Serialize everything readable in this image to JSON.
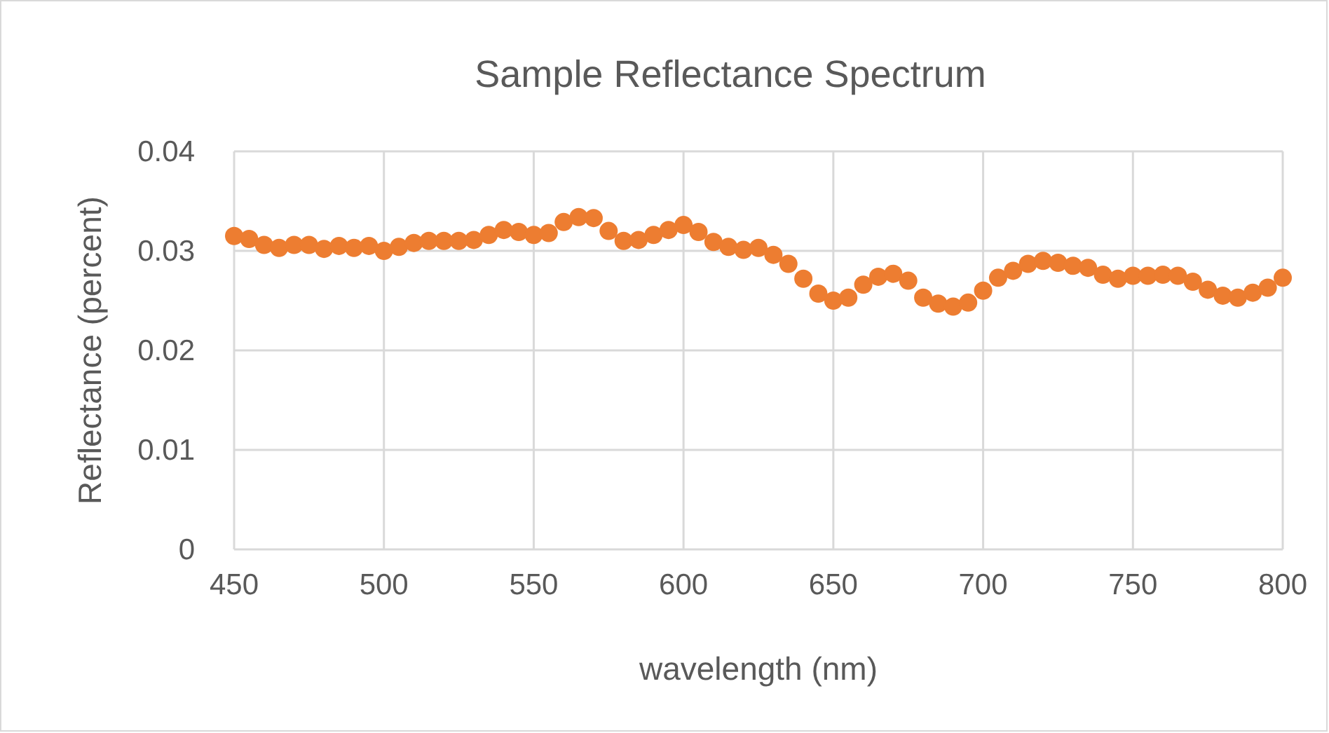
{
  "chart_data": {
    "type": "scatter",
    "title": "Sample Reflectance Spectrum",
    "xlabel": "wavelength (nm)",
    "ylabel": "Reflectance (percent)",
    "x": [
      450,
      455,
      460,
      465,
      470,
      475,
      480,
      485,
      490,
      495,
      500,
      505,
      510,
      515,
      520,
      525,
      530,
      535,
      540,
      545,
      550,
      555,
      560,
      565,
      570,
      575,
      580,
      585,
      590,
      595,
      600,
      605,
      610,
      615,
      620,
      625,
      630,
      635,
      640,
      645,
      650,
      655,
      660,
      665,
      670,
      675,
      680,
      685,
      690,
      695,
      700,
      705,
      710,
      715,
      720,
      725,
      730,
      735,
      740,
      745,
      750,
      755,
      760,
      765,
      770,
      775,
      780,
      785,
      790,
      795,
      800
    ],
    "series": [
      {
        "color": "#ed7d31",
        "values": [
          0.0315,
          0.0312,
          0.0306,
          0.0303,
          0.0306,
          0.0306,
          0.0302,
          0.0305,
          0.0303,
          0.0305,
          0.03,
          0.0304,
          0.0308,
          0.031,
          0.031,
          0.031,
          0.0311,
          0.0316,
          0.0321,
          0.0319,
          0.0316,
          0.0318,
          0.0329,
          0.0334,
          0.0333,
          0.032,
          0.031,
          0.0311,
          0.0316,
          0.0321,
          0.0326,
          0.0319,
          0.0309,
          0.0304,
          0.0301,
          0.0303,
          0.0296,
          0.0287,
          0.0272,
          0.0257,
          0.025,
          0.0253,
          0.0266,
          0.0274,
          0.0277,
          0.027,
          0.0253,
          0.0247,
          0.0244,
          0.0248,
          0.026,
          0.0273,
          0.028,
          0.0287,
          0.029,
          0.0288,
          0.0285,
          0.0283,
          0.0276,
          0.0272,
          0.0275,
          0.0275,
          0.0276,
          0.0275,
          0.0269,
          0.0261,
          0.0255,
          0.0253,
          0.0258,
          0.0263,
          0.0273
        ]
      }
    ],
    "xlim": [
      450,
      800
    ],
    "xticks": [
      450,
      500,
      550,
      600,
      650,
      700,
      750,
      800
    ],
    "ylim": [
      0,
      0.04
    ],
    "yticks": [
      0,
      0.01,
      0.02,
      0.03,
      0.04
    ],
    "grid": true,
    "marker": "circle"
  }
}
